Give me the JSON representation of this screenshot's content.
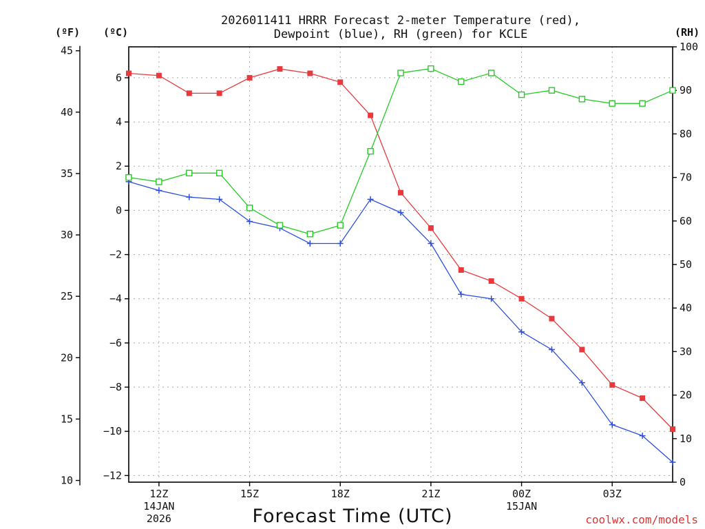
{
  "chart_data": {
    "type": "line",
    "title_line1": "2026011411 HRRR Forecast 2-meter Temperature (red),",
    "title_line2": "Dewpoint (blue), RH (green) for KCLE",
    "xlabel": "Forecast Time (UTC)",
    "credit": "coolwx.com/models",
    "unit_left_f": "(ºF)",
    "unit_left_c": "(ºC)",
    "unit_right_rh": "(RH)",
    "hours": [
      11,
      12,
      13,
      14,
      15,
      16,
      17,
      18,
      19,
      20,
      21,
      22,
      23,
      24,
      25,
      26,
      27,
      28,
      29
    ],
    "xlim": [
      11,
      29
    ],
    "x_ticks": [
      {
        "x": 12,
        "lines": [
          "12Z",
          "14JAN",
          "2026"
        ]
      },
      {
        "x": 15,
        "lines": [
          "15Z"
        ]
      },
      {
        "x": 18,
        "lines": [
          "18Z"
        ]
      },
      {
        "x": 21,
        "lines": [
          "21Z"
        ]
      },
      {
        "x": 24,
        "lines": [
          "00Z",
          "15JAN"
        ]
      },
      {
        "x": 27,
        "lines": [
          "03Z"
        ]
      }
    ],
    "celsius_axis": {
      "range": [
        -12.3,
        7.4
      ],
      "ticks": [
        6,
        4,
        2,
        0,
        -2,
        -4,
        -6,
        -8,
        -10,
        -12
      ],
      "tick_labels": [
        "6",
        "4",
        "2",
        "0",
        "−2",
        "−4",
        "−6",
        "−8",
        "−10",
        "−12"
      ]
    },
    "fahrenheit_axis": {
      "ticks": [
        45,
        40,
        35,
        30,
        25,
        20,
        15,
        10
      ],
      "tick_labels": [
        "45",
        "40",
        "35",
        "30",
        "25",
        "20",
        "15",
        "10"
      ]
    },
    "rh_axis": {
      "range": [
        0,
        100
      ],
      "ticks": [
        0,
        10,
        20,
        30,
        40,
        50,
        60,
        70,
        80,
        90,
        100
      ],
      "tick_labels": [
        "0",
        "10",
        "20",
        "30",
        "40",
        "50",
        "60",
        "70",
        "80",
        "90",
        "100"
      ]
    },
    "series": [
      {
        "name": "Temperature",
        "unit": "C",
        "color": "#e8393c",
        "marker": "filled-square",
        "values": [
          6.2,
          6.1,
          5.3,
          5.3,
          6.0,
          6.4,
          6.2,
          5.8,
          4.3,
          0.8,
          -0.8,
          -2.7,
          -3.2,
          -4.0,
          -4.9,
          -6.3,
          -7.9,
          -8.5,
          -9.9
        ]
      },
      {
        "name": "Dewpoint",
        "unit": "C",
        "color": "#2a4fe0",
        "marker": "plus",
        "values": [
          1.3,
          0.9,
          0.6,
          0.5,
          -0.5,
          -0.8,
          -1.5,
          -1.5,
          0.5,
          -0.1,
          -1.5,
          -3.8,
          -4.0,
          -5.5,
          -6.3,
          -7.8,
          -9.7,
          -10.2,
          -11.4
        ]
      },
      {
        "name": "RH",
        "unit": "%",
        "color": "#22cc22",
        "marker": "open-square",
        "values": [
          70,
          69,
          71,
          71,
          63,
          59,
          57,
          59,
          76,
          94,
          95,
          92,
          94,
          89,
          90,
          88,
          87,
          87,
          90
        ]
      }
    ]
  }
}
